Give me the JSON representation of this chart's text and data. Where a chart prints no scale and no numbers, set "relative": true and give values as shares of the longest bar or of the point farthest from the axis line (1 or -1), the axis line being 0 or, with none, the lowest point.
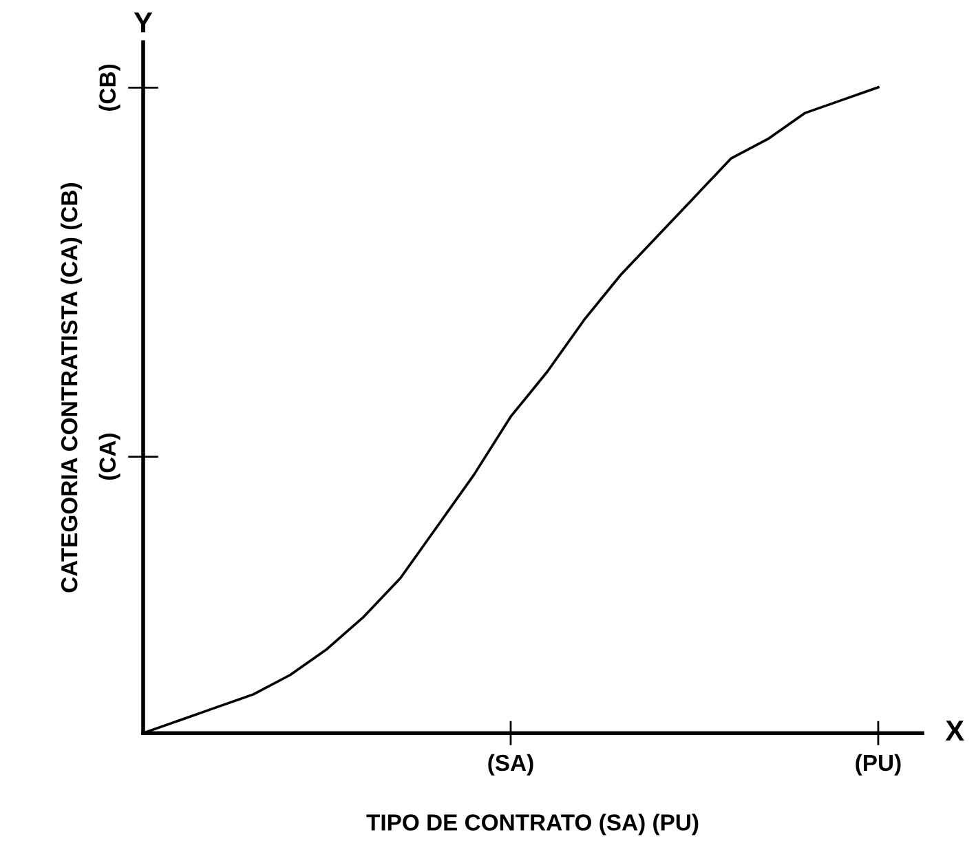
{
  "chart_data": {
    "type": "line",
    "relative": true,
    "xlabel": "TIPO DE CONTRATO (SA) (PU)",
    "ylabel": "CATEGORIA CONTRATISTA (CA) (CB)",
    "annotations": [
      "X",
      "Y",
      "(CA)",
      "(CB)"
    ],
    "categories": [
      null,
      null,
      null,
      null,
      null,
      null,
      null,
      null,
      null,
      null,
      "(SA)",
      null,
      null,
      null,
      null,
      null,
      null,
      null,
      null,
      null,
      "(PU)"
    ],
    "series": [
      {
        "color": "#000000",
        "values": [
          0,
          0.02,
          0.04,
          0.06,
          0.09,
          0.13,
          0.18,
          0.24,
          0.32,
          0.4,
          0.49,
          0.56,
          0.64,
          0.71,
          0.77,
          0.83,
          0.89,
          0.92,
          0.96,
          0.98,
          1.0
        ]
      }
    ],
    "grid": false,
    "legend": false,
    "marker": "none",
    "line_style": "solid"
  }
}
